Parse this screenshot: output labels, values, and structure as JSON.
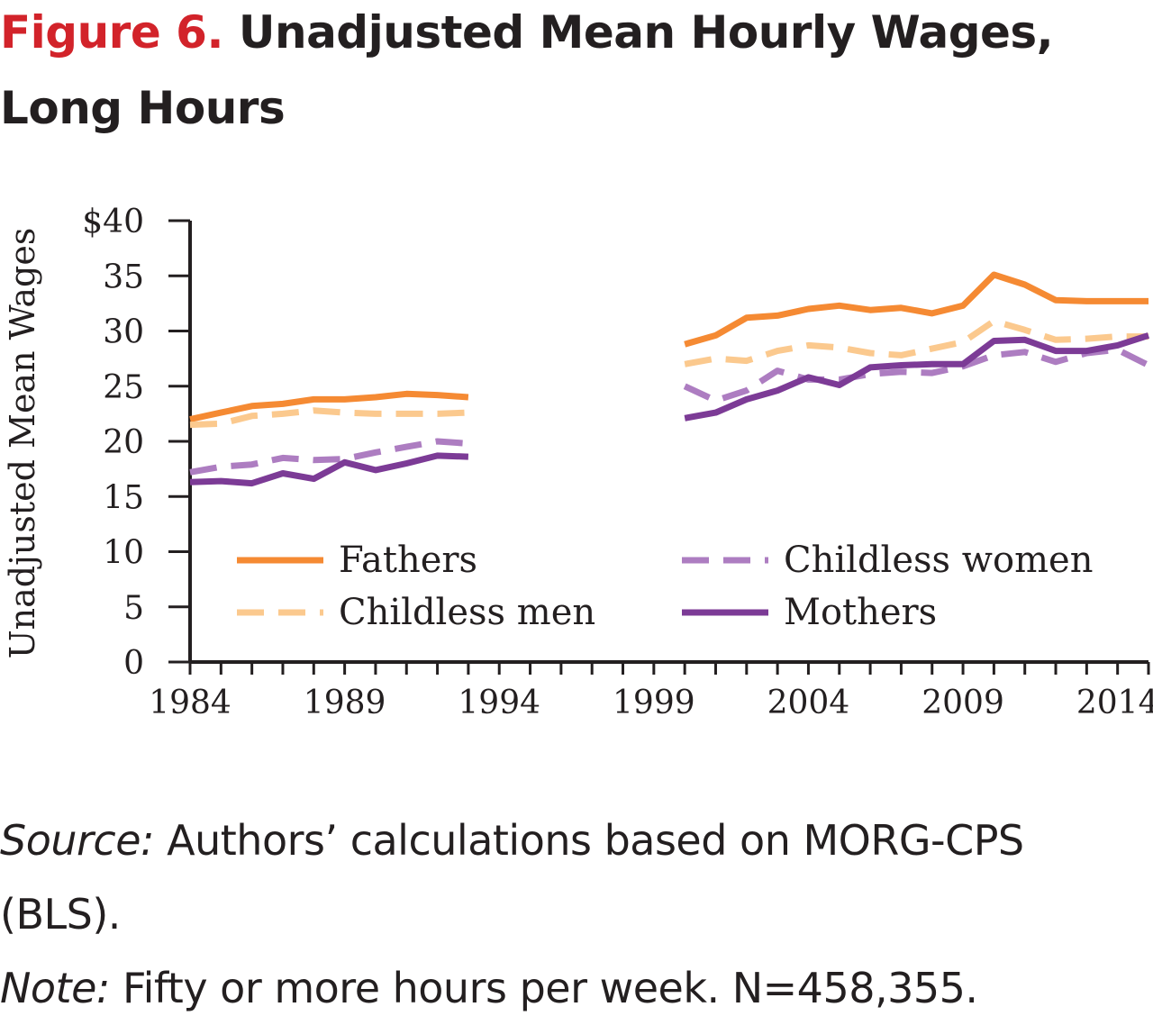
{
  "figure": {
    "label": "Figure 6.",
    "title": "Unadjusted Mean Hourly Wages, Long Hours"
  },
  "footer": {
    "source_label": "Source:",
    "source_text": "Authors’ calculations based on MORG-CPS (BLS).",
    "note_label": "Note:",
    "note_text": "Fifty or more hours per week. N=458,355."
  },
  "chart_data": {
    "type": "line",
    "title": "",
    "xlabel": "",
    "ylabel": "Unadjusted Mean Wages",
    "ylim": [
      0,
      40
    ],
    "xlim": [
      1984,
      2015
    ],
    "y_ticks": [
      0,
      5,
      10,
      15,
      20,
      25,
      30,
      35,
      40
    ],
    "y_tick_labels": [
      "0",
      "5",
      "10",
      "15",
      "20",
      "25",
      "30",
      "35",
      "$40"
    ],
    "x_ticks": [
      1984,
      1989,
      1994,
      1999,
      2004,
      2009,
      2014
    ],
    "x_tick_labels": [
      "1984",
      "1989",
      "1994",
      "1999",
      "2004",
      "2009",
      "2014"
    ],
    "grid": false,
    "legend_position": "lower-center, two columns",
    "x": [
      1984,
      1985,
      1986,
      1987,
      1988,
      1989,
      1990,
      1991,
      1992,
      1993,
      2000,
      2001,
      2002,
      2003,
      2004,
      2005,
      2006,
      2007,
      2008,
      2009,
      2010,
      2011,
      2012,
      2013,
      2014,
      2015
    ],
    "series": [
      {
        "name": "Fathers",
        "color": "#f58a33",
        "dash": "solid",
        "values": [
          22.0,
          22.6,
          23.2,
          23.4,
          23.8,
          23.8,
          24.0,
          24.3,
          24.2,
          24.0,
          28.8,
          29.6,
          31.2,
          31.4,
          32.0,
          32.3,
          31.9,
          32.1,
          31.6,
          32.3,
          35.1,
          34.2,
          32.8,
          32.7,
          32.7,
          32.7
        ]
      },
      {
        "name": "Childless men",
        "color": "#fbc98e",
        "dash": "dashed",
        "values": [
          21.5,
          21.6,
          22.3,
          22.5,
          22.8,
          22.6,
          22.5,
          22.5,
          22.5,
          22.6,
          27.0,
          27.5,
          27.3,
          28.2,
          28.7,
          28.5,
          28.0,
          27.8,
          28.4,
          29.0,
          30.9,
          30.1,
          29.2,
          29.3,
          29.5,
          29.5
        ]
      },
      {
        "name": "Childless women",
        "color": "#ad7dc1",
        "dash": "dashed",
        "values": [
          17.2,
          17.7,
          17.9,
          18.5,
          18.3,
          18.4,
          19.0,
          19.5,
          20.0,
          19.8,
          25.0,
          23.7,
          24.6,
          26.4,
          25.6,
          25.6,
          26.1,
          26.3,
          26.2,
          26.8,
          27.8,
          28.1,
          27.2,
          28.0,
          28.3,
          26.9
        ]
      },
      {
        "name": "Mothers",
        "color": "#7c3b96",
        "dash": "solid",
        "values": [
          16.3,
          16.4,
          16.2,
          17.1,
          16.6,
          18.1,
          17.4,
          18.0,
          18.7,
          18.6,
          22.1,
          22.6,
          23.8,
          24.6,
          25.8,
          25.1,
          26.7,
          26.9,
          27.0,
          27.0,
          29.1,
          29.2,
          28.2,
          28.2,
          28.7,
          29.6
        ]
      }
    ]
  }
}
